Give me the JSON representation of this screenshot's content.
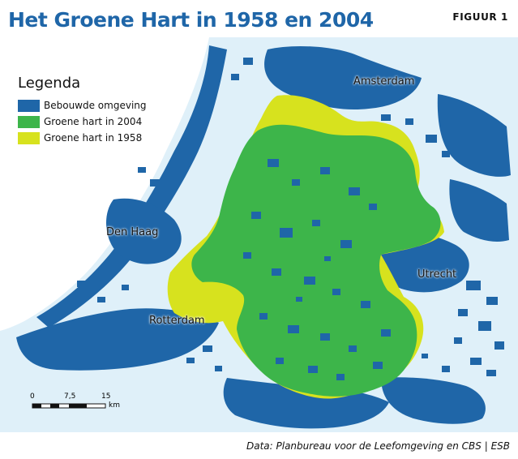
{
  "title": "Het Groene Hart in 1958 en 2004",
  "figure_label": "FIGUUR 1",
  "legend": {
    "title": "Legenda",
    "items": [
      {
        "label": "Bebouwde omgeving",
        "color": "#1f66a8"
      },
      {
        "label": "Groene hart in 2004",
        "color": "#3db54a"
      },
      {
        "label": "Groene hart in 1958",
        "color": "#d7e21e"
      }
    ]
  },
  "cities": {
    "amsterdam": "Amsterdam",
    "den_haag": "Den Haag",
    "utrecht": "Utrecht",
    "rotterdam": "Rotterdam"
  },
  "scale": {
    "ticks": [
      "0",
      "7,5",
      "15"
    ],
    "unit": "km"
  },
  "source": "Data: Planbureau voor de Leefomgeving en CBS | ESB",
  "colors": {
    "background": "#dff0f9",
    "sea": "#ffffff",
    "built": "#1f66a8",
    "green_2004": "#3db54a",
    "green_1958": "#d7e21e",
    "title": "#1f66a8"
  }
}
